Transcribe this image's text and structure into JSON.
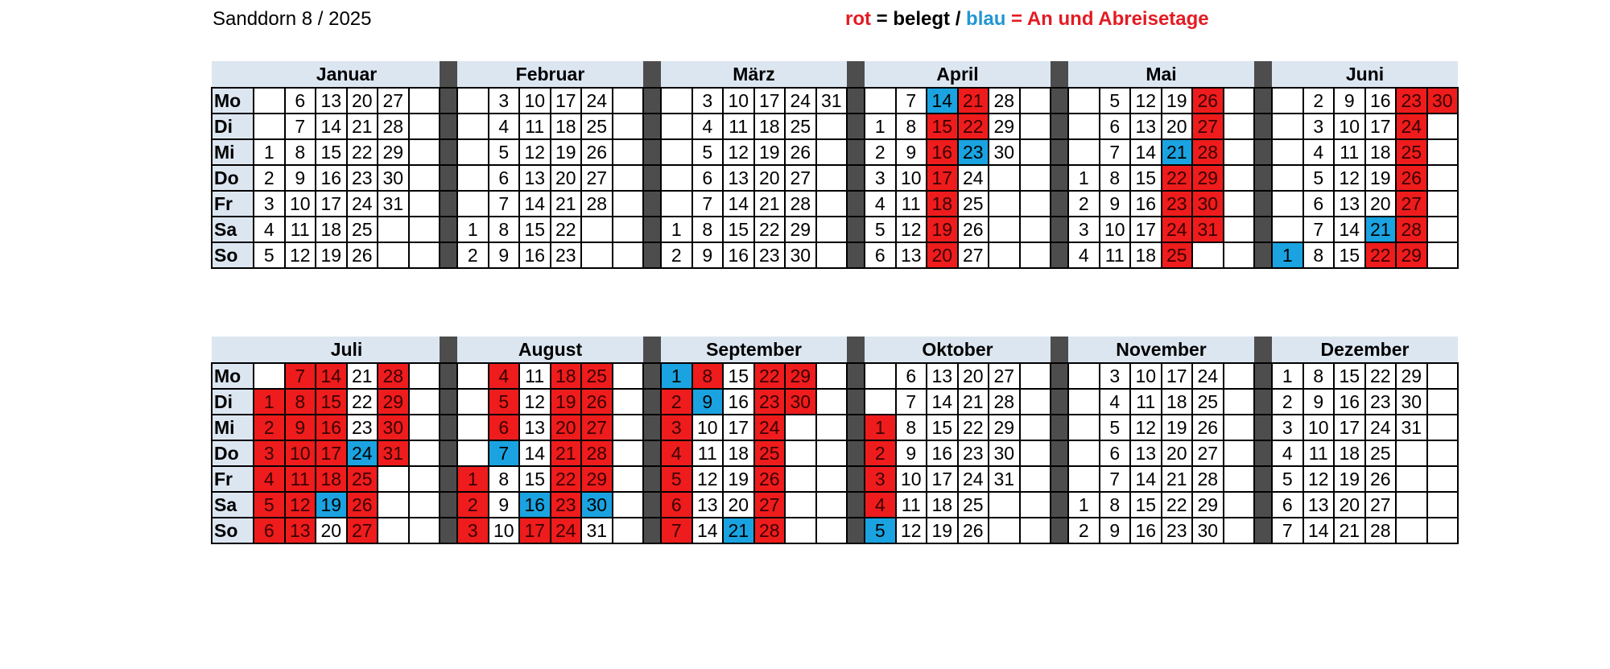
{
  "title": "Sanddorn 8 / 2025",
  "legend": {
    "rot": "rot",
    "eq1": " = belegt / ",
    "blau": "blau",
    "eq2": " = An und Abreisetage"
  },
  "colors": {
    "booked": "#ee1c1c",
    "arrival_departure": "#1aa3e0",
    "header_bg": "#dce6f1",
    "separator": "#4d4d4d"
  },
  "weekdays": [
    "Mo",
    "Di",
    "Mi",
    "Do",
    "Fr",
    "Sa",
    "So"
  ],
  "blocks": [
    {
      "months": [
        {
          "name": "Januar",
          "cells": [
            [
              "",
              "6",
              "13",
              "20",
              "27",
              ""
            ],
            [
              "",
              "7",
              "14",
              "21",
              "28",
              ""
            ],
            [
              "1",
              "8",
              "15",
              "22",
              "29",
              ""
            ],
            [
              "2",
              "9",
              "16",
              "23",
              "30",
              ""
            ],
            [
              "3",
              "10",
              "17",
              "24",
              "31",
              ""
            ],
            [
              "4",
              "11",
              "18",
              "25",
              "",
              ""
            ],
            [
              "5",
              "12",
              "19",
              "26",
              "",
              ""
            ]
          ]
        },
        {
          "name": "Februar",
          "cells": [
            [
              "",
              "3",
              "10",
              "17",
              "24",
              ""
            ],
            [
              "",
              "4",
              "11",
              "18",
              "25",
              ""
            ],
            [
              "",
              "5",
              "12",
              "19",
              "26",
              ""
            ],
            [
              "",
              "6",
              "13",
              "20",
              "27",
              ""
            ],
            [
              "",
              "7",
              "14",
              "21",
              "28",
              ""
            ],
            [
              "1",
              "8",
              "15",
              "22",
              "",
              ""
            ],
            [
              "2",
              "9",
              "16",
              "23",
              "",
              ""
            ]
          ]
        },
        {
          "name": "März",
          "cells": [
            [
              "",
              "3",
              "10",
              "17",
              "24",
              "31"
            ],
            [
              "",
              "4",
              "11",
              "18",
              "25",
              ""
            ],
            [
              "",
              "5",
              "12",
              "19",
              "26",
              ""
            ],
            [
              "",
              "6",
              "13",
              "20",
              "27",
              ""
            ],
            [
              "",
              "7",
              "14",
              "21",
              "28",
              ""
            ],
            [
              "1",
              "8",
              "15",
              "22",
              "29",
              ""
            ],
            [
              "2",
              "9",
              "16",
              "23",
              "30",
              ""
            ]
          ]
        },
        {
          "name": "April",
          "cells": [
            [
              "",
              "7",
              "14",
              "21",
              "28",
              ""
            ],
            [
              "1",
              "8",
              "15",
              "22",
              "29",
              ""
            ],
            [
              "2",
              "9",
              "16",
              "23",
              "30",
              ""
            ],
            [
              "3",
              "10",
              "17",
              "24",
              "",
              ""
            ],
            [
              "4",
              "11",
              "18",
              "25",
              "",
              ""
            ],
            [
              "5",
              "12",
              "19",
              "26",
              "",
              ""
            ],
            [
              "6",
              "13",
              "20",
              "27",
              "",
              ""
            ]
          ]
        },
        {
          "name": "Mai",
          "cells": [
            [
              "",
              "5",
              "12",
              "19",
              "26",
              ""
            ],
            [
              "",
              "6",
              "13",
              "20",
              "27",
              ""
            ],
            [
              "",
              "7",
              "14",
              "21",
              "28",
              ""
            ],
            [
              "1",
              "8",
              "15",
              "22",
              "29",
              ""
            ],
            [
              "2",
              "9",
              "16",
              "23",
              "30",
              ""
            ],
            [
              "3",
              "10",
              "17",
              "24",
              "31",
              ""
            ],
            [
              "4",
              "11",
              "18",
              "25",
              "",
              ""
            ]
          ]
        },
        {
          "name": "Juni",
          "cells": [
            [
              "",
              "2",
              "9",
              "16",
              "23",
              "30"
            ],
            [
              "",
              "3",
              "10",
              "17",
              "24",
              ""
            ],
            [
              "",
              "4",
              "11",
              "18",
              "25",
              ""
            ],
            [
              "",
              "5",
              "12",
              "19",
              "26",
              ""
            ],
            [
              "",
              "6",
              "13",
              "20",
              "27",
              ""
            ],
            [
              "",
              "7",
              "14",
              "21",
              "28",
              ""
            ],
            [
              "1",
              "8",
              "15",
              "22",
              "29",
              ""
            ]
          ]
        }
      ],
      "marks": {
        "April": {
          "r": [
            "15",
            "16",
            "17",
            "18",
            "19",
            "20",
            "21",
            "22"
          ],
          "b": [
            "14",
            "23"
          ]
        },
        "Mai": {
          "r": [
            "22",
            "23",
            "24",
            "25",
            "26",
            "27",
            "28",
            "29",
            "30",
            "31"
          ],
          "b": [
            "21"
          ]
        },
        "Juni": {
          "r": [
            "22",
            "23",
            "24",
            "25",
            "26",
            "27",
            "28",
            "29",
            "30"
          ],
          "b": [
            "1",
            "21"
          ]
        }
      }
    },
    {
      "months": [
        {
          "name": "Juli",
          "cells": [
            [
              "",
              "7",
              "14",
              "21",
              "28",
              ""
            ],
            [
              "1",
              "8",
              "15",
              "22",
              "29",
              ""
            ],
            [
              "2",
              "9",
              "16",
              "23",
              "30",
              ""
            ],
            [
              "3",
              "10",
              "17",
              "24",
              "31",
              ""
            ],
            [
              "4",
              "11",
              "18",
              "25",
              "",
              ""
            ],
            [
              "5",
              "12",
              "19",
              "26",
              "",
              ""
            ],
            [
              "6",
              "13",
              "20",
              "27",
              "",
              ""
            ]
          ]
        },
        {
          "name": "August",
          "cells": [
            [
              "",
              "4",
              "11",
              "18",
              "25",
              ""
            ],
            [
              "",
              "5",
              "12",
              "19",
              "26",
              ""
            ],
            [
              "",
              "6",
              "13",
              "20",
              "27",
              ""
            ],
            [
              "",
              "7",
              "14",
              "21",
              "28",
              ""
            ],
            [
              "1",
              "8",
              "15",
              "22",
              "29",
              ""
            ],
            [
              "2",
              "9",
              "16",
              "23",
              "30",
              ""
            ],
            [
              "3",
              "10",
              "17",
              "24",
              "31",
              ""
            ]
          ]
        },
        {
          "name": "September",
          "cells": [
            [
              "1",
              "8",
              "15",
              "22",
              "29",
              ""
            ],
            [
              "2",
              "9",
              "16",
              "23",
              "30",
              ""
            ],
            [
              "3",
              "10",
              "17",
              "24",
              "",
              ""
            ],
            [
              "4",
              "11",
              "18",
              "25",
              "",
              ""
            ],
            [
              "5",
              "12",
              "19",
              "26",
              "",
              ""
            ],
            [
              "6",
              "13",
              "20",
              "27",
              "",
              ""
            ],
            [
              "7",
              "14",
              "21",
              "28",
              "",
              ""
            ]
          ]
        },
        {
          "name": "Oktober",
          "cells": [
            [
              "",
              "6",
              "13",
              "20",
              "27",
              ""
            ],
            [
              "",
              "7",
              "14",
              "21",
              "28",
              ""
            ],
            [
              "1",
              "8",
              "15",
              "22",
              "29",
              ""
            ],
            [
              "2",
              "9",
              "16",
              "23",
              "30",
              ""
            ],
            [
              "3",
              "10",
              "17",
              "24",
              "31",
              ""
            ],
            [
              "4",
              "11",
              "18",
              "25",
              "",
              ""
            ],
            [
              "5",
              "12",
              "19",
              "26",
              "",
              ""
            ]
          ]
        },
        {
          "name": "November",
          "cells": [
            [
              "",
              "3",
              "10",
              "17",
              "24",
              ""
            ],
            [
              "",
              "4",
              "11",
              "18",
              "25",
              ""
            ],
            [
              "",
              "5",
              "12",
              "19",
              "26",
              ""
            ],
            [
              "",
              "6",
              "13",
              "20",
              "27",
              ""
            ],
            [
              "",
              "7",
              "14",
              "21",
              "28",
              ""
            ],
            [
              "1",
              "8",
              "15",
              "22",
              "29",
              ""
            ],
            [
              "2",
              "9",
              "16",
              "23",
              "30",
              ""
            ]
          ]
        },
        {
          "name": "Dezember",
          "cells": [
            [
              "1",
              "8",
              "15",
              "22",
              "29",
              ""
            ],
            [
              "2",
              "9",
              "16",
              "23",
              "30",
              ""
            ],
            [
              "3",
              "10",
              "17",
              "24",
              "31",
              ""
            ],
            [
              "4",
              "11",
              "18",
              "25",
              "",
              ""
            ],
            [
              "5",
              "12",
              "19",
              "26",
              "",
              ""
            ],
            [
              "6",
              "13",
              "20",
              "27",
              "",
              ""
            ],
            [
              "7",
              "14",
              "21",
              "28",
              "",
              ""
            ]
          ]
        }
      ],
      "marks": {
        "Juli": {
          "r": [
            "1",
            "2",
            "3",
            "4",
            "5",
            "6",
            "7",
            "8",
            "9",
            "10",
            "11",
            "12",
            "13",
            "14",
            "15",
            "16",
            "17",
            "18",
            "25",
            "26",
            "27",
            "28",
            "29",
            "30",
            "31"
          ],
          "b": [
            "19",
            "24"
          ]
        },
        "August": {
          "r": [
            "1",
            "2",
            "3",
            "4",
            "5",
            "6",
            "17",
            "18",
            "19",
            "20",
            "21",
            "22",
            "23",
            "24",
            "25",
            "26",
            "27",
            "28",
            "29"
          ],
          "b": [
            "7",
            "16",
            "30"
          ]
        },
        "September": {
          "r": [
            "2",
            "3",
            "4",
            "5",
            "6",
            "7",
            "8",
            "22",
            "23",
            "24",
            "25",
            "26",
            "27",
            "28",
            "29",
            "30"
          ],
          "b": [
            "1",
            "9",
            "21"
          ]
        },
        "Oktober": {
          "r": [
            "1",
            "2",
            "3",
            "4"
          ],
          "b": [
            "5"
          ]
        }
      }
    }
  ]
}
